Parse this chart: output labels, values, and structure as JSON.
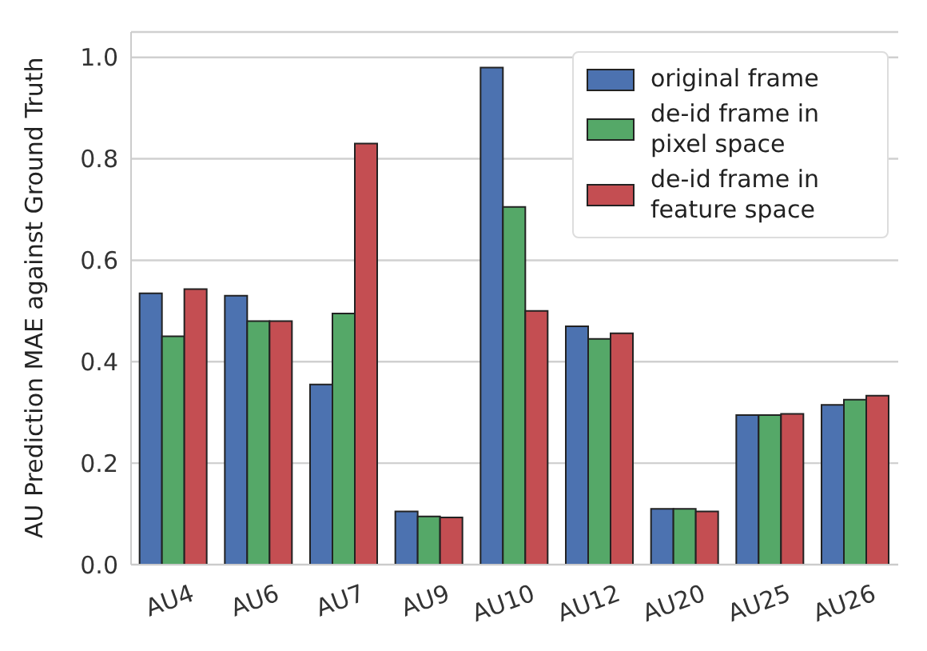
{
  "chart_data": {
    "type": "bar",
    "ylabel": "AU Prediction MAE against Ground Truth",
    "categories": [
      "AU4",
      "AU6",
      "AU7",
      "AU9",
      "AU10",
      "AU12",
      "AU20",
      "AU25",
      "AU26"
    ],
    "series": [
      {
        "name": "original frame",
        "color": "#4c72b0",
        "values": [
          0.535,
          0.53,
          0.355,
          0.105,
          0.98,
          0.47,
          0.11,
          0.295,
          0.315
        ]
      },
      {
        "name": "de-id frame in pixel space",
        "color": "#55a868",
        "values": [
          0.45,
          0.48,
          0.495,
          0.095,
          0.705,
          0.445,
          0.11,
          0.295,
          0.325
        ]
      },
      {
        "name": "de-id frame in feature space",
        "color": "#c44e52",
        "values": [
          0.543,
          0.48,
          0.83,
          0.093,
          0.5,
          0.456,
          0.105,
          0.297,
          0.333
        ]
      }
    ],
    "ylim": [
      0,
      1.05
    ],
    "yticks": [
      {
        "value": 0,
        "label": "0.0"
      },
      0.2,
      0.4,
      0.6,
      0.8,
      {
        "value": 1,
        "label": "1.0"
      }
    ],
    "grid": "y",
    "legend": "top right"
  }
}
